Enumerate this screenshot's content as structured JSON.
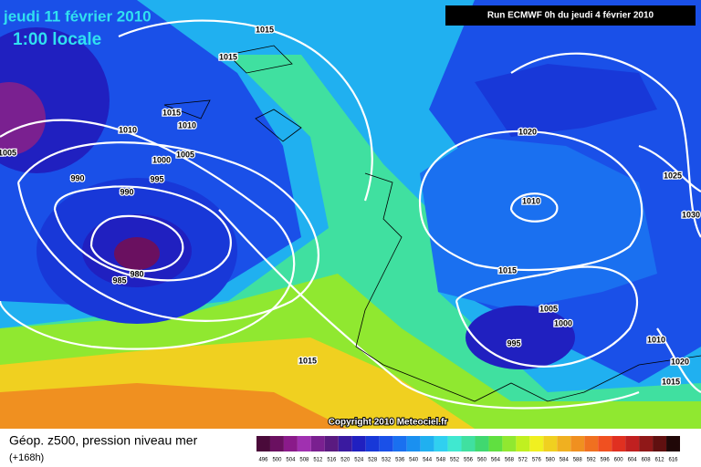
{
  "header": {
    "date": "jeudi 11 février 2010",
    "time": "1:00 locale",
    "run": "Run ECMWF 0h du jeudi 4 février 2010"
  },
  "isobar_labels": [
    "1015",
    "1015",
    "1015",
    "1010",
    "1010",
    "1005",
    "1005",
    "1000",
    "995",
    "990",
    "990",
    "980",
    "985",
    "1020",
    "1025",
    "1010",
    "1030",
    "1015",
    "1005",
    "1000",
    "995",
    "1010",
    "1015",
    "1020",
    "1015"
  ],
  "copyright": "Copyright 2010 Meteociel.fr",
  "footer": {
    "title": "Géop. z500, pression niveau mer",
    "lead": "(+168h)"
  },
  "scale": {
    "labels": [
      "496",
      "500",
      "504",
      "508",
      "512",
      "516",
      "520",
      "524",
      "528",
      "532",
      "536",
      "540",
      "544",
      "548",
      "552",
      "556",
      "560",
      "564",
      "568",
      "572",
      "576",
      "580",
      "584",
      "588",
      "592",
      "596",
      "600",
      "604",
      "608",
      "612",
      "616"
    ],
    "colors": [
      "#4a0a3a",
      "#6a1060",
      "#8a1a8a",
      "#a030b0",
      "#7a2090",
      "#5a1a80",
      "#3a1aa0",
      "#2020c0",
      "#1838d8",
      "#1a50e8",
      "#1a70f0",
      "#1a90f0",
      "#20b0f0",
      "#30d0f0",
      "#40e8d0",
      "#40e0a0",
      "#40d870",
      "#60e040",
      "#90e830",
      "#c0f020",
      "#f0f020",
      "#f0d020",
      "#f0b020",
      "#f09020",
      "#f07020",
      "#f05020",
      "#e03020",
      "#c02020",
      "#901818",
      "#601010",
      "#200808"
    ]
  }
}
